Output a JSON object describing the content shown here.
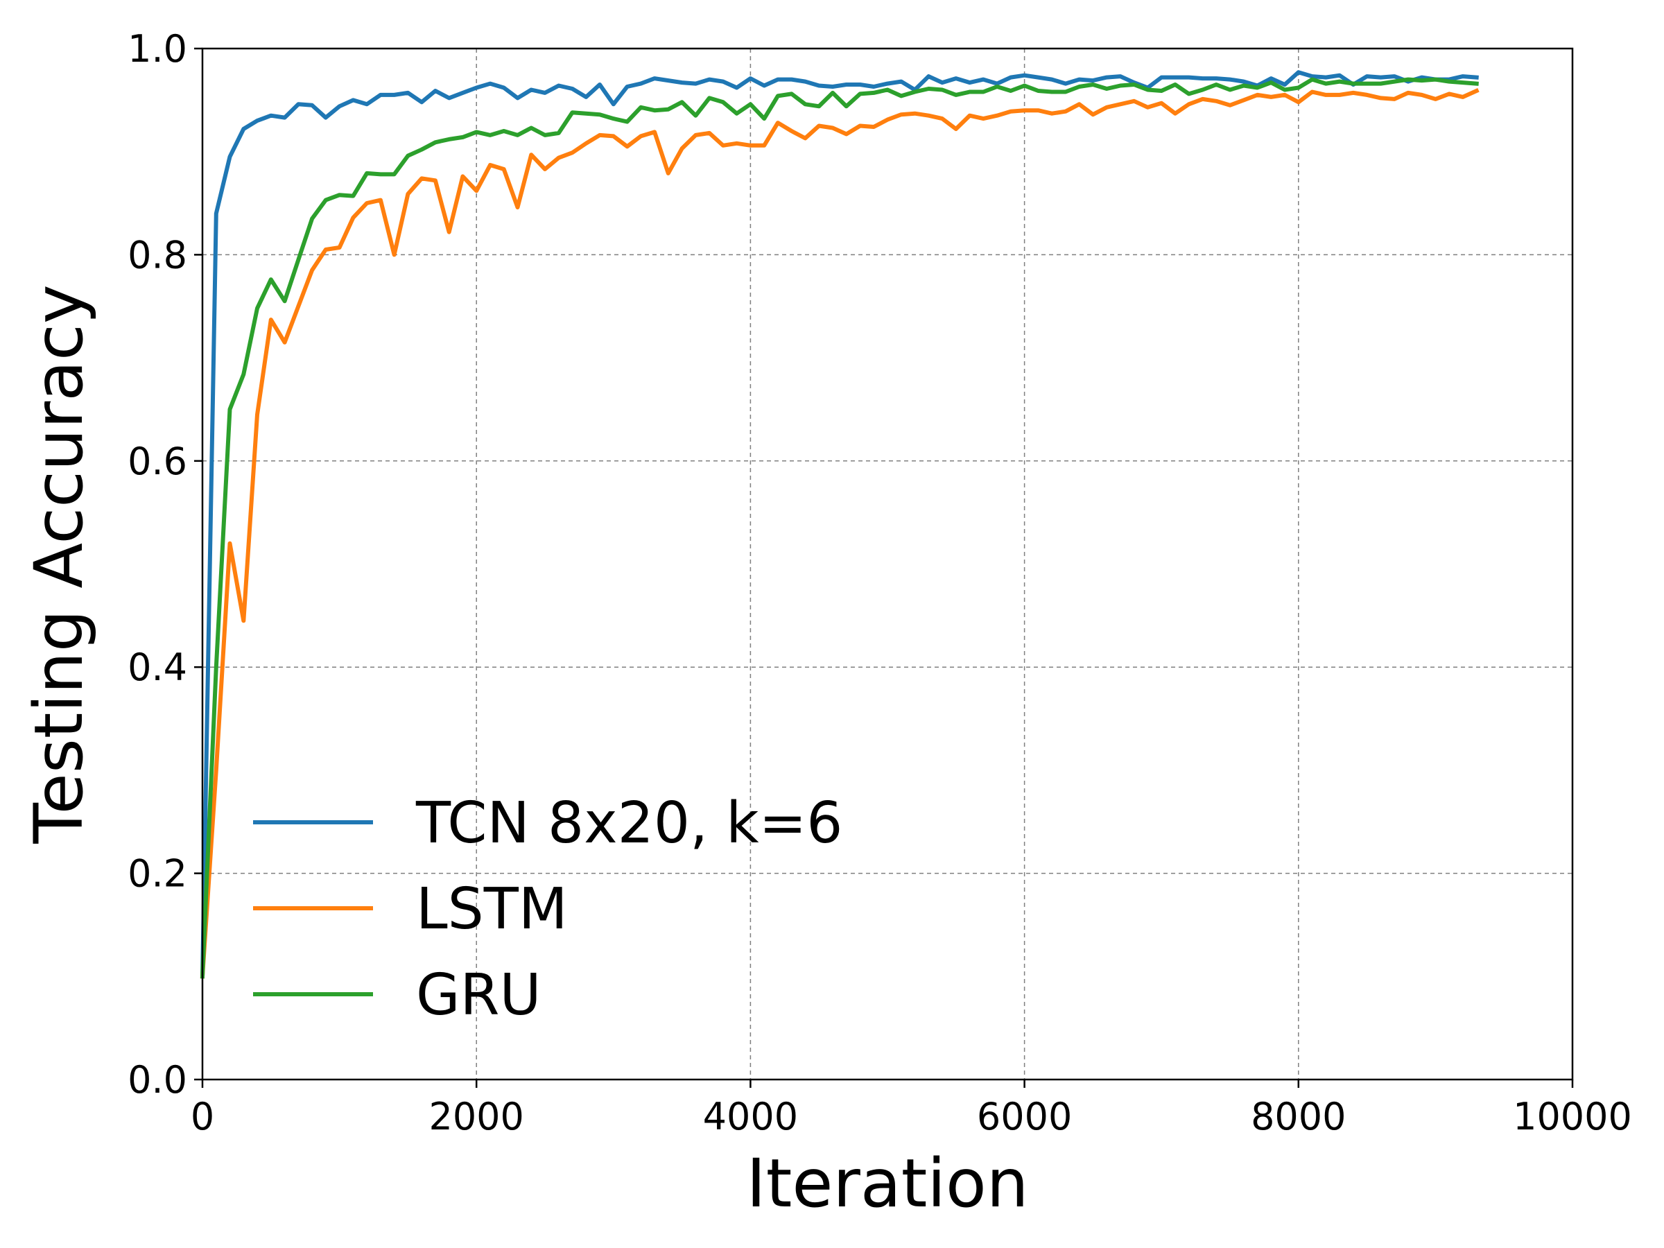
{
  "chart_data": {
    "type": "line",
    "xlabel": "Iteration",
    "ylabel": "Testing Accuracy",
    "xlim": [
      0,
      10000
    ],
    "ylim": [
      0.0,
      1.0
    ],
    "x_ticks": [
      "0",
      "2000",
      "4000",
      "6000",
      "8000",
      "10000"
    ],
    "y_ticks": [
      "0.0",
      "0.2",
      "0.4",
      "0.6",
      "0.8",
      "1.0"
    ],
    "grid": true,
    "legend_position": "lower-left",
    "x": [
      0,
      100,
      200,
      300,
      400,
      500,
      600,
      700,
      800,
      900,
      1000,
      1100,
      1200,
      1300,
      1400,
      1500,
      1600,
      1700,
      1800,
      1900,
      2000,
      2100,
      2200,
      2300,
      2400,
      2500,
      2600,
      2700,
      2800,
      2900,
      3000,
      3100,
      3200,
      3300,
      3400,
      3500,
      3600,
      3700,
      3800,
      3900,
      4000,
      4100,
      4200,
      4300,
      4400,
      4500,
      4600,
      4700,
      4800,
      4900,
      5000,
      5100,
      5200,
      5300,
      5400,
      5500,
      5600,
      5700,
      5800,
      5900,
      6000,
      6100,
      6200,
      6300,
      6400,
      6500,
      6600,
      6700,
      6800,
      6900,
      7000,
      7100,
      7200,
      7300,
      7400,
      7500,
      7600,
      7700,
      7800,
      7900,
      8000,
      8100,
      8200,
      8300,
      8400,
      8500,
      8600,
      8700,
      8800,
      8900,
      9000,
      9100,
      9200,
      9300
    ],
    "series": [
      {
        "name": "TCN 8x20, k=6",
        "color": "#1f77b4",
        "values": [
          0.1,
          0.84,
          0.895,
          0.922,
          0.93,
          0.935,
          0.933,
          0.946,
          0.945,
          0.933,
          0.944,
          0.95,
          0.946,
          0.955,
          0.955,
          0.957,
          0.948,
          0.959,
          0.952,
          0.957,
          0.962,
          0.966,
          0.962,
          0.952,
          0.96,
          0.957,
          0.964,
          0.961,
          0.953,
          0.965,
          0.946,
          0.963,
          0.966,
          0.971,
          0.969,
          0.967,
          0.966,
          0.97,
          0.968,
          0.962,
          0.971,
          0.964,
          0.97,
          0.97,
          0.968,
          0.964,
          0.963,
          0.965,
          0.965,
          0.963,
          0.966,
          0.968,
          0.96,
          0.973,
          0.967,
          0.971,
          0.967,
          0.97,
          0.966,
          0.972,
          0.974,
          0.972,
          0.97,
          0.966,
          0.97,
          0.969,
          0.972,
          0.973,
          0.967,
          0.962,
          0.972,
          0.972,
          0.972,
          0.971,
          0.971,
          0.97,
          0.968,
          0.964,
          0.971,
          0.965,
          0.977,
          0.973,
          0.972,
          0.974,
          0.965,
          0.973,
          0.972,
          0.973,
          0.968,
          0.972,
          0.97,
          0.97,
          0.973,
          0.972
        ]
      },
      {
        "name": "LSTM",
        "color": "#ff7f0e",
        "values": [
          0.1,
          0.3,
          0.52,
          0.445,
          0.645,
          0.737,
          0.715,
          0.75,
          0.785,
          0.805,
          0.807,
          0.836,
          0.85,
          0.853,
          0.8,
          0.859,
          0.874,
          0.872,
          0.822,
          0.876,
          0.862,
          0.887,
          0.883,
          0.846,
          0.897,
          0.883,
          0.894,
          0.899,
          0.908,
          0.916,
          0.915,
          0.905,
          0.915,
          0.919,
          0.879,
          0.903,
          0.916,
          0.918,
          0.906,
          0.908,
          0.906,
          0.906,
          0.928,
          0.92,
          0.913,
          0.925,
          0.923,
          0.917,
          0.925,
          0.924,
          0.931,
          0.936,
          0.937,
          0.935,
          0.932,
          0.922,
          0.935,
          0.932,
          0.935,
          0.939,
          0.94,
          0.94,
          0.937,
          0.939,
          0.946,
          0.936,
          0.943,
          0.946,
          0.949,
          0.943,
          0.947,
          0.937,
          0.946,
          0.951,
          0.949,
          0.945,
          0.95,
          0.955,
          0.953,
          0.955,
          0.948,
          0.958,
          0.955,
          0.955,
          0.957,
          0.955,
          0.952,
          0.951,
          0.957,
          0.955,
          0.951,
          0.956,
          0.953,
          0.959
        ]
      },
      {
        "name": "GRU",
        "color": "#2ca02c",
        "values": [
          0.1,
          0.4,
          0.65,
          0.684,
          0.748,
          0.776,
          0.755,
          0.795,
          0.835,
          0.853,
          0.858,
          0.857,
          0.879,
          0.878,
          0.878,
          0.896,
          0.902,
          0.909,
          0.912,
          0.914,
          0.919,
          0.916,
          0.92,
          0.916,
          0.923,
          0.916,
          0.918,
          0.938,
          0.937,
          0.936,
          0.932,
          0.929,
          0.943,
          0.94,
          0.941,
          0.948,
          0.935,
          0.952,
          0.948,
          0.937,
          0.946,
          0.932,
          0.954,
          0.956,
          0.946,
          0.944,
          0.957,
          0.944,
          0.956,
          0.957,
          0.96,
          0.954,
          0.958,
          0.961,
          0.96,
          0.955,
          0.958,
          0.958,
          0.963,
          0.959,
          0.964,
          0.959,
          0.958,
          0.958,
          0.963,
          0.965,
          0.961,
          0.964,
          0.965,
          0.96,
          0.959,
          0.965,
          0.956,
          0.96,
          0.965,
          0.96,
          0.964,
          0.962,
          0.967,
          0.96,
          0.962,
          0.97,
          0.966,
          0.968,
          0.966,
          0.966,
          0.966,
          0.968,
          0.97,
          0.969,
          0.97,
          0.968,
          0.967,
          0.966
        ]
      }
    ]
  }
}
